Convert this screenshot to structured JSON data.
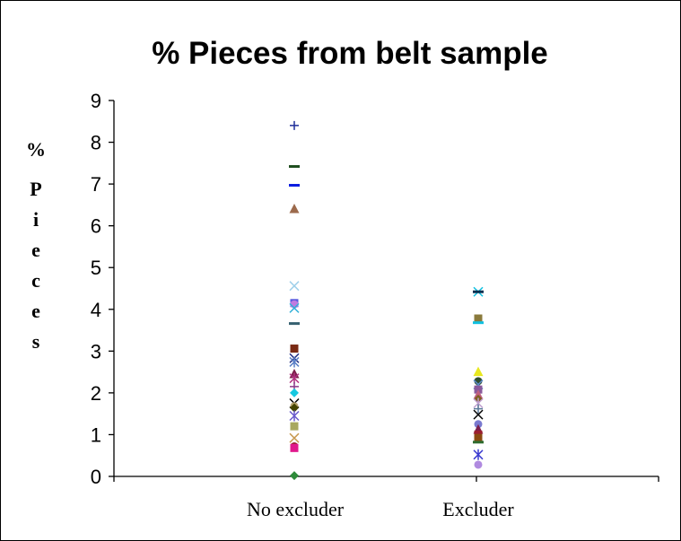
{
  "chart_data": {
    "type": "scatter",
    "title": "% Pieces from belt sample",
    "ylabel": "% Pieces",
    "xlabel": "",
    "categories": [
      "No excluder",
      "Excluder"
    ],
    "ylim": [
      0,
      9
    ],
    "yticks": [
      "0",
      "1",
      "2",
      "3",
      "4",
      "5",
      "6",
      "7",
      "8",
      "9"
    ],
    "grid": false,
    "legend": "none",
    "points": [
      {
        "cat": 0,
        "y": 8.4,
        "marker": "plus",
        "color": "#1f2f9a"
      },
      {
        "cat": 0,
        "y": 7.42,
        "marker": "dash",
        "color": "#1e4d1e"
      },
      {
        "cat": 0,
        "y": 6.97,
        "marker": "dash",
        "color": "#0b1de0"
      },
      {
        "cat": 0,
        "y": 6.4,
        "marker": "triangle",
        "color": "#9c6a4c"
      },
      {
        "cat": 0,
        "y": 4.56,
        "marker": "x",
        "color": "#9fd0ea"
      },
      {
        "cat": 0,
        "y": 4.15,
        "marker": "square",
        "color": "#5a5adf"
      },
      {
        "cat": 0,
        "y": 4.12,
        "marker": "circle",
        "color": "#c07be0"
      },
      {
        "cat": 0,
        "y": 4.03,
        "marker": "x",
        "color": "#2fb0d8"
      },
      {
        "cat": 0,
        "y": 3.66,
        "marker": "dash",
        "color": "#356070"
      },
      {
        "cat": 0,
        "y": 3.06,
        "marker": "square",
        "color": "#7a2a14"
      },
      {
        "cat": 0,
        "y": 2.83,
        "marker": "x",
        "color": "#1e2b80"
      },
      {
        "cat": 0,
        "y": 2.74,
        "marker": "star",
        "color": "#5b7fc6"
      },
      {
        "cat": 0,
        "y": 2.45,
        "marker": "triangle",
        "color": "#7c1f4a"
      },
      {
        "cat": 0,
        "y": 2.35,
        "marker": "star",
        "color": "#b03080"
      },
      {
        "cat": 0,
        "y": 2.15,
        "marker": "plus",
        "color": "#8c3b8c"
      },
      {
        "cat": 0,
        "y": 2.0,
        "marker": "diamond",
        "color": "#16c8e0"
      },
      {
        "cat": 0,
        "y": 1.75,
        "marker": "x",
        "color": "#000000"
      },
      {
        "cat": 0,
        "y": 1.68,
        "marker": "circle",
        "color": "#b5a06a"
      },
      {
        "cat": 0,
        "y": 1.64,
        "marker": "diamond",
        "color": "#444400"
      },
      {
        "cat": 0,
        "y": 1.45,
        "marker": "star",
        "color": "#6a5acd"
      },
      {
        "cat": 0,
        "y": 1.2,
        "marker": "square",
        "color": "#a8a860"
      },
      {
        "cat": 0,
        "y": 0.92,
        "marker": "x",
        "color": "#c89a50"
      },
      {
        "cat": 0,
        "y": 0.72,
        "marker": "circle",
        "color": "#9c1f2f"
      },
      {
        "cat": 0,
        "y": 0.68,
        "marker": "square",
        "color": "#e0188c"
      },
      {
        "cat": 0,
        "y": 0.02,
        "marker": "diamond",
        "color": "#2e8b3a"
      },
      {
        "cat": 1,
        "y": 4.42,
        "marker": "x",
        "color": "#10c0e0"
      },
      {
        "cat": 1,
        "y": 4.42,
        "marker": "dash",
        "color": "#0a3050"
      },
      {
        "cat": 1,
        "y": 3.78,
        "marker": "square",
        "color": "#8a7a3c"
      },
      {
        "cat": 1,
        "y": 3.68,
        "marker": "dash",
        "color": "#10c0e0"
      },
      {
        "cat": 1,
        "y": 2.5,
        "marker": "triangle",
        "color": "#e8e820"
      },
      {
        "cat": 1,
        "y": 2.28,
        "marker": "circle",
        "color": "#2e4d2e"
      },
      {
        "cat": 1,
        "y": 2.2,
        "marker": "x",
        "color": "#5b8ac6"
      },
      {
        "cat": 1,
        "y": 2.08,
        "marker": "square",
        "color": "#8a5a9c"
      },
      {
        "cat": 1,
        "y": 1.95,
        "marker": "triangle",
        "color": "#c06080"
      },
      {
        "cat": 1,
        "y": 1.85,
        "marker": "diamond",
        "color": "#806020"
      },
      {
        "cat": 1,
        "y": 1.75,
        "marker": "star",
        "color": "#c0a0d0"
      },
      {
        "cat": 1,
        "y": 1.62,
        "marker": "plus",
        "color": "#5a7a9a"
      },
      {
        "cat": 1,
        "y": 1.48,
        "marker": "x",
        "color": "#000000"
      },
      {
        "cat": 1,
        "y": 1.25,
        "marker": "circle",
        "color": "#7a7ad0"
      },
      {
        "cat": 1,
        "y": 1.12,
        "marker": "triangle",
        "color": "#7c1f4a"
      },
      {
        "cat": 1,
        "y": 1.0,
        "marker": "square",
        "color": "#9c1f2f"
      },
      {
        "cat": 1,
        "y": 0.92,
        "marker": "square",
        "color": "#8a4a10"
      },
      {
        "cat": 1,
        "y": 0.82,
        "marker": "dash",
        "color": "#2e6b2e"
      },
      {
        "cat": 1,
        "y": 0.52,
        "marker": "star",
        "color": "#3a3ad0"
      },
      {
        "cat": 1,
        "y": 0.28,
        "marker": "circle",
        "color": "#b08ae0"
      }
    ]
  }
}
